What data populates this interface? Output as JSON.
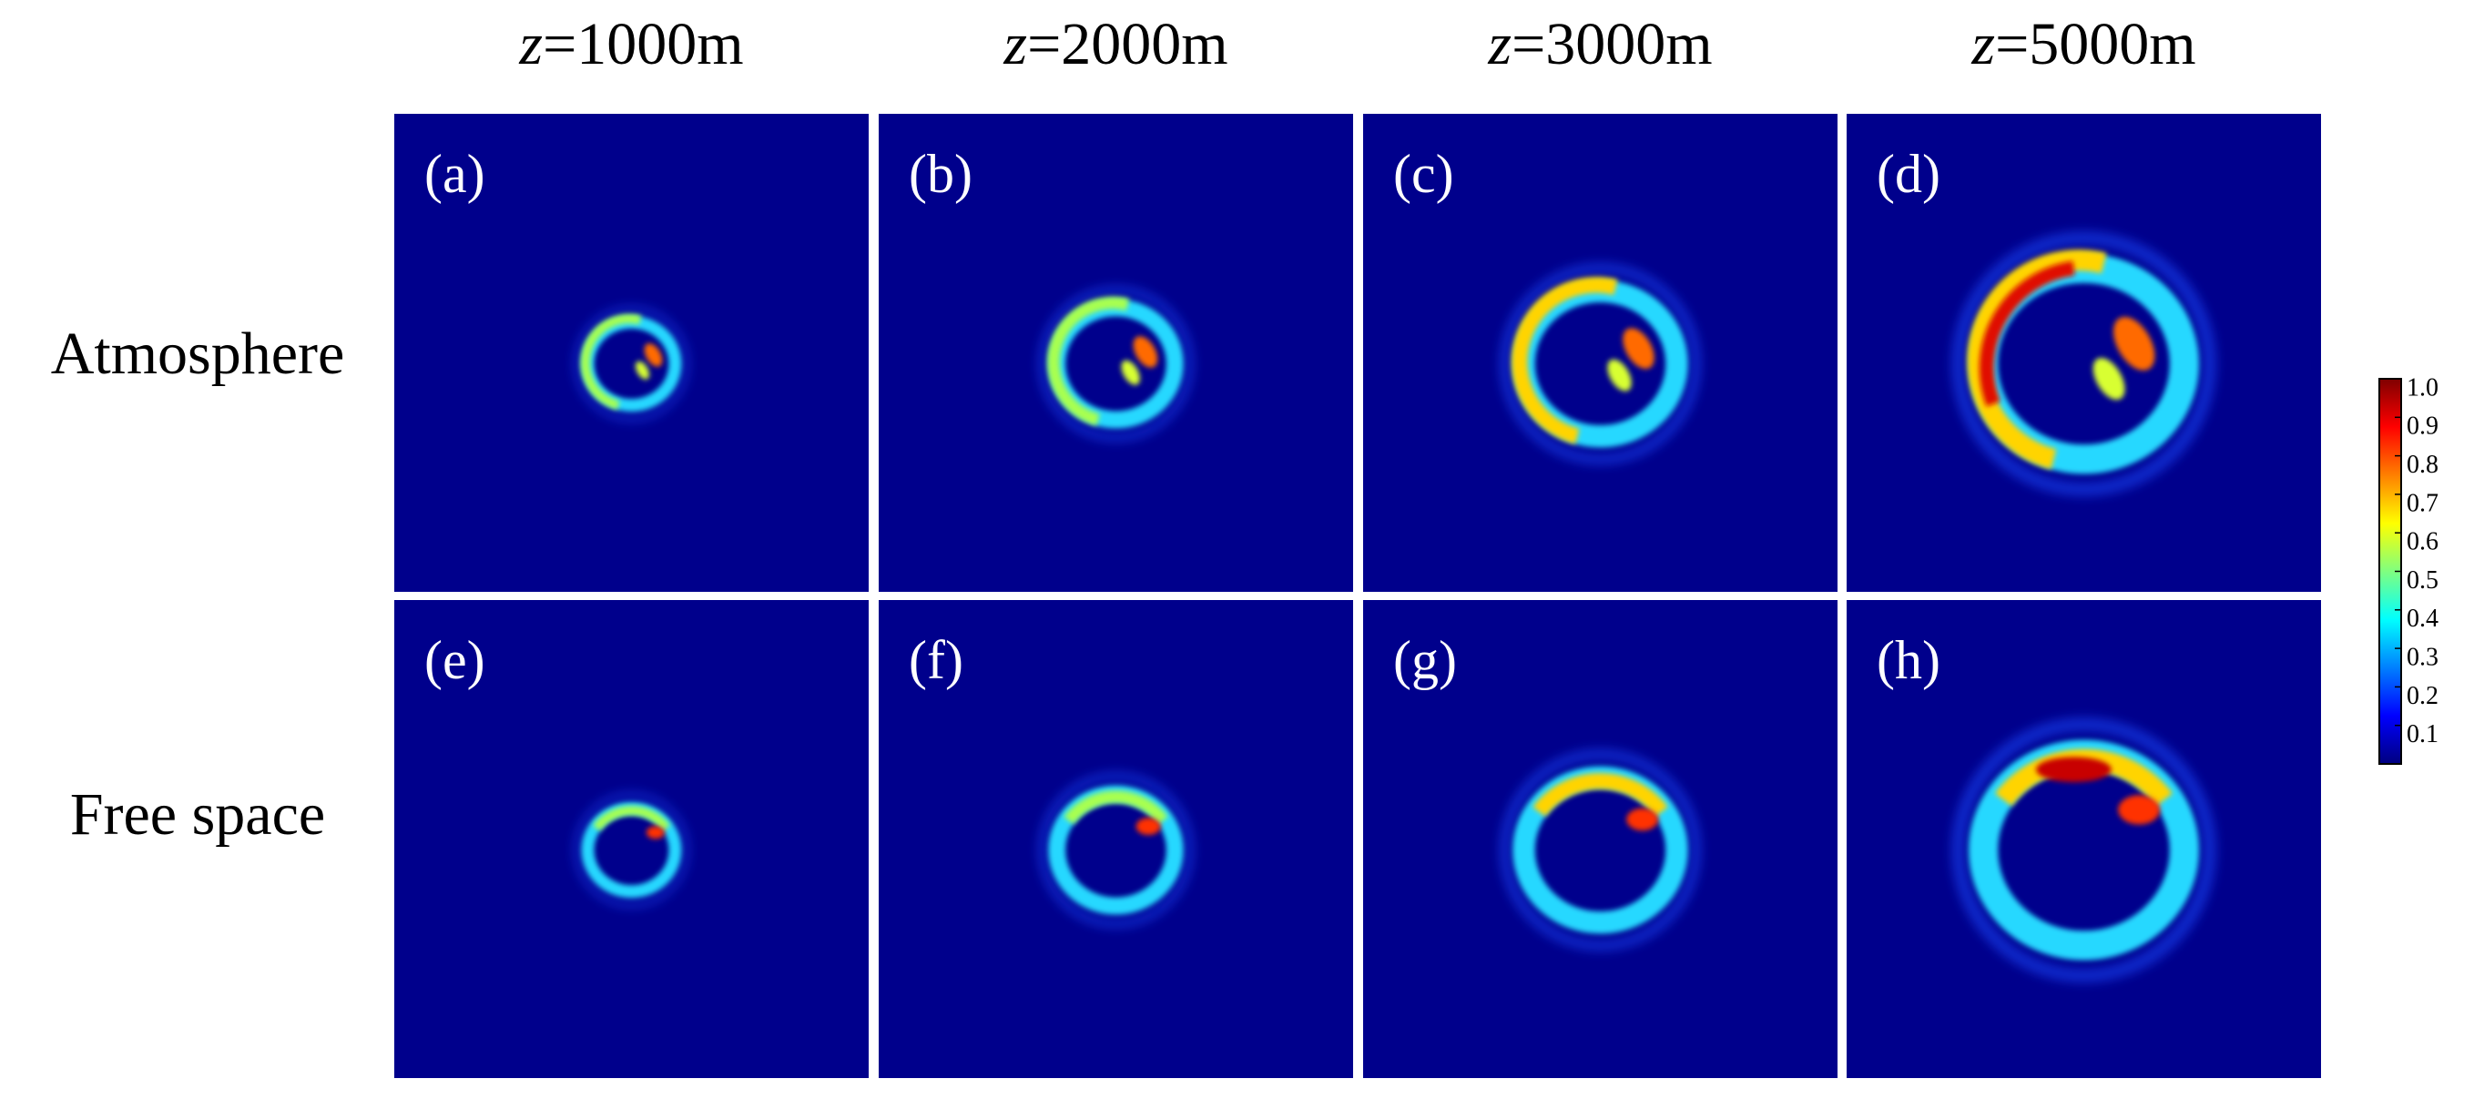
{
  "figure": {
    "columns": [
      {
        "var": "z",
        "text": "=1000m"
      },
      {
        "var": "z",
        "text": "=2000m"
      },
      {
        "var": "z",
        "text": "=3000m"
      },
      {
        "var": "z",
        "text": "=5000m"
      }
    ],
    "rows": [
      {
        "label": "Atmosphere",
        "panels": [
          "(a)",
          "(b)",
          "(c)",
          "(d)"
        ]
      },
      {
        "label": "Free space",
        "panels": [
          "(e)",
          "(f)",
          "(g)",
          "(h)"
        ]
      }
    ],
    "colorbar": {
      "lim": [
        0,
        1
      ],
      "ticks": [
        0.1,
        0.2,
        0.3,
        0.4,
        0.5,
        0.6,
        0.7,
        0.8,
        0.9,
        {
          "value": 1,
          "label": "1.0"
        }
      ]
    }
  }
}
